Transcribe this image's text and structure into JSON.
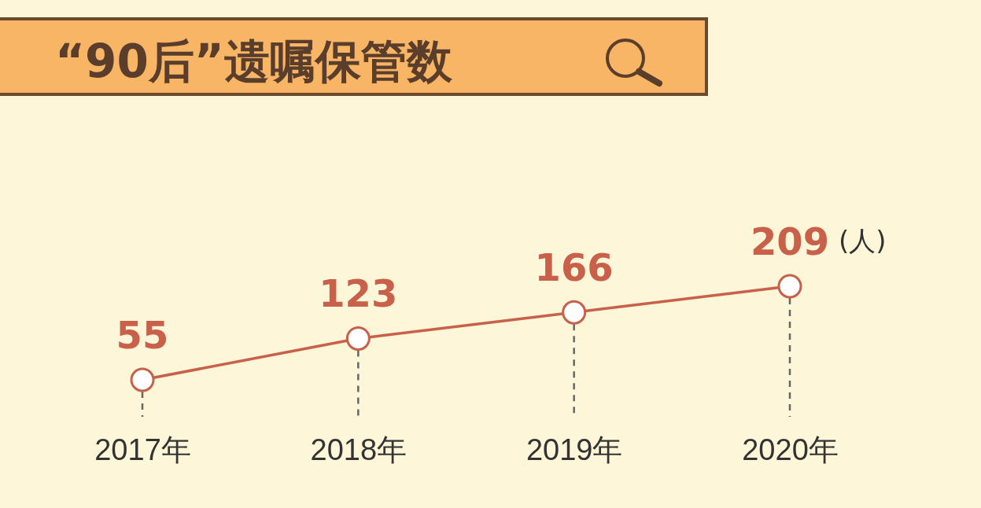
{
  "chart_data": {
    "type": "line",
    "title": "“90后”遗嘱保管数",
    "categories": [
      "2017年",
      "2018年",
      "2019年",
      "2020年"
    ],
    "values": [
      55,
      123,
      166,
      209
    ],
    "color": "#c8604a",
    "marker": "circle",
    "line_style": "solid",
    "data_labels": true,
    "grid": "x",
    "annotations": [
      "(人)"
    ]
  }
}
